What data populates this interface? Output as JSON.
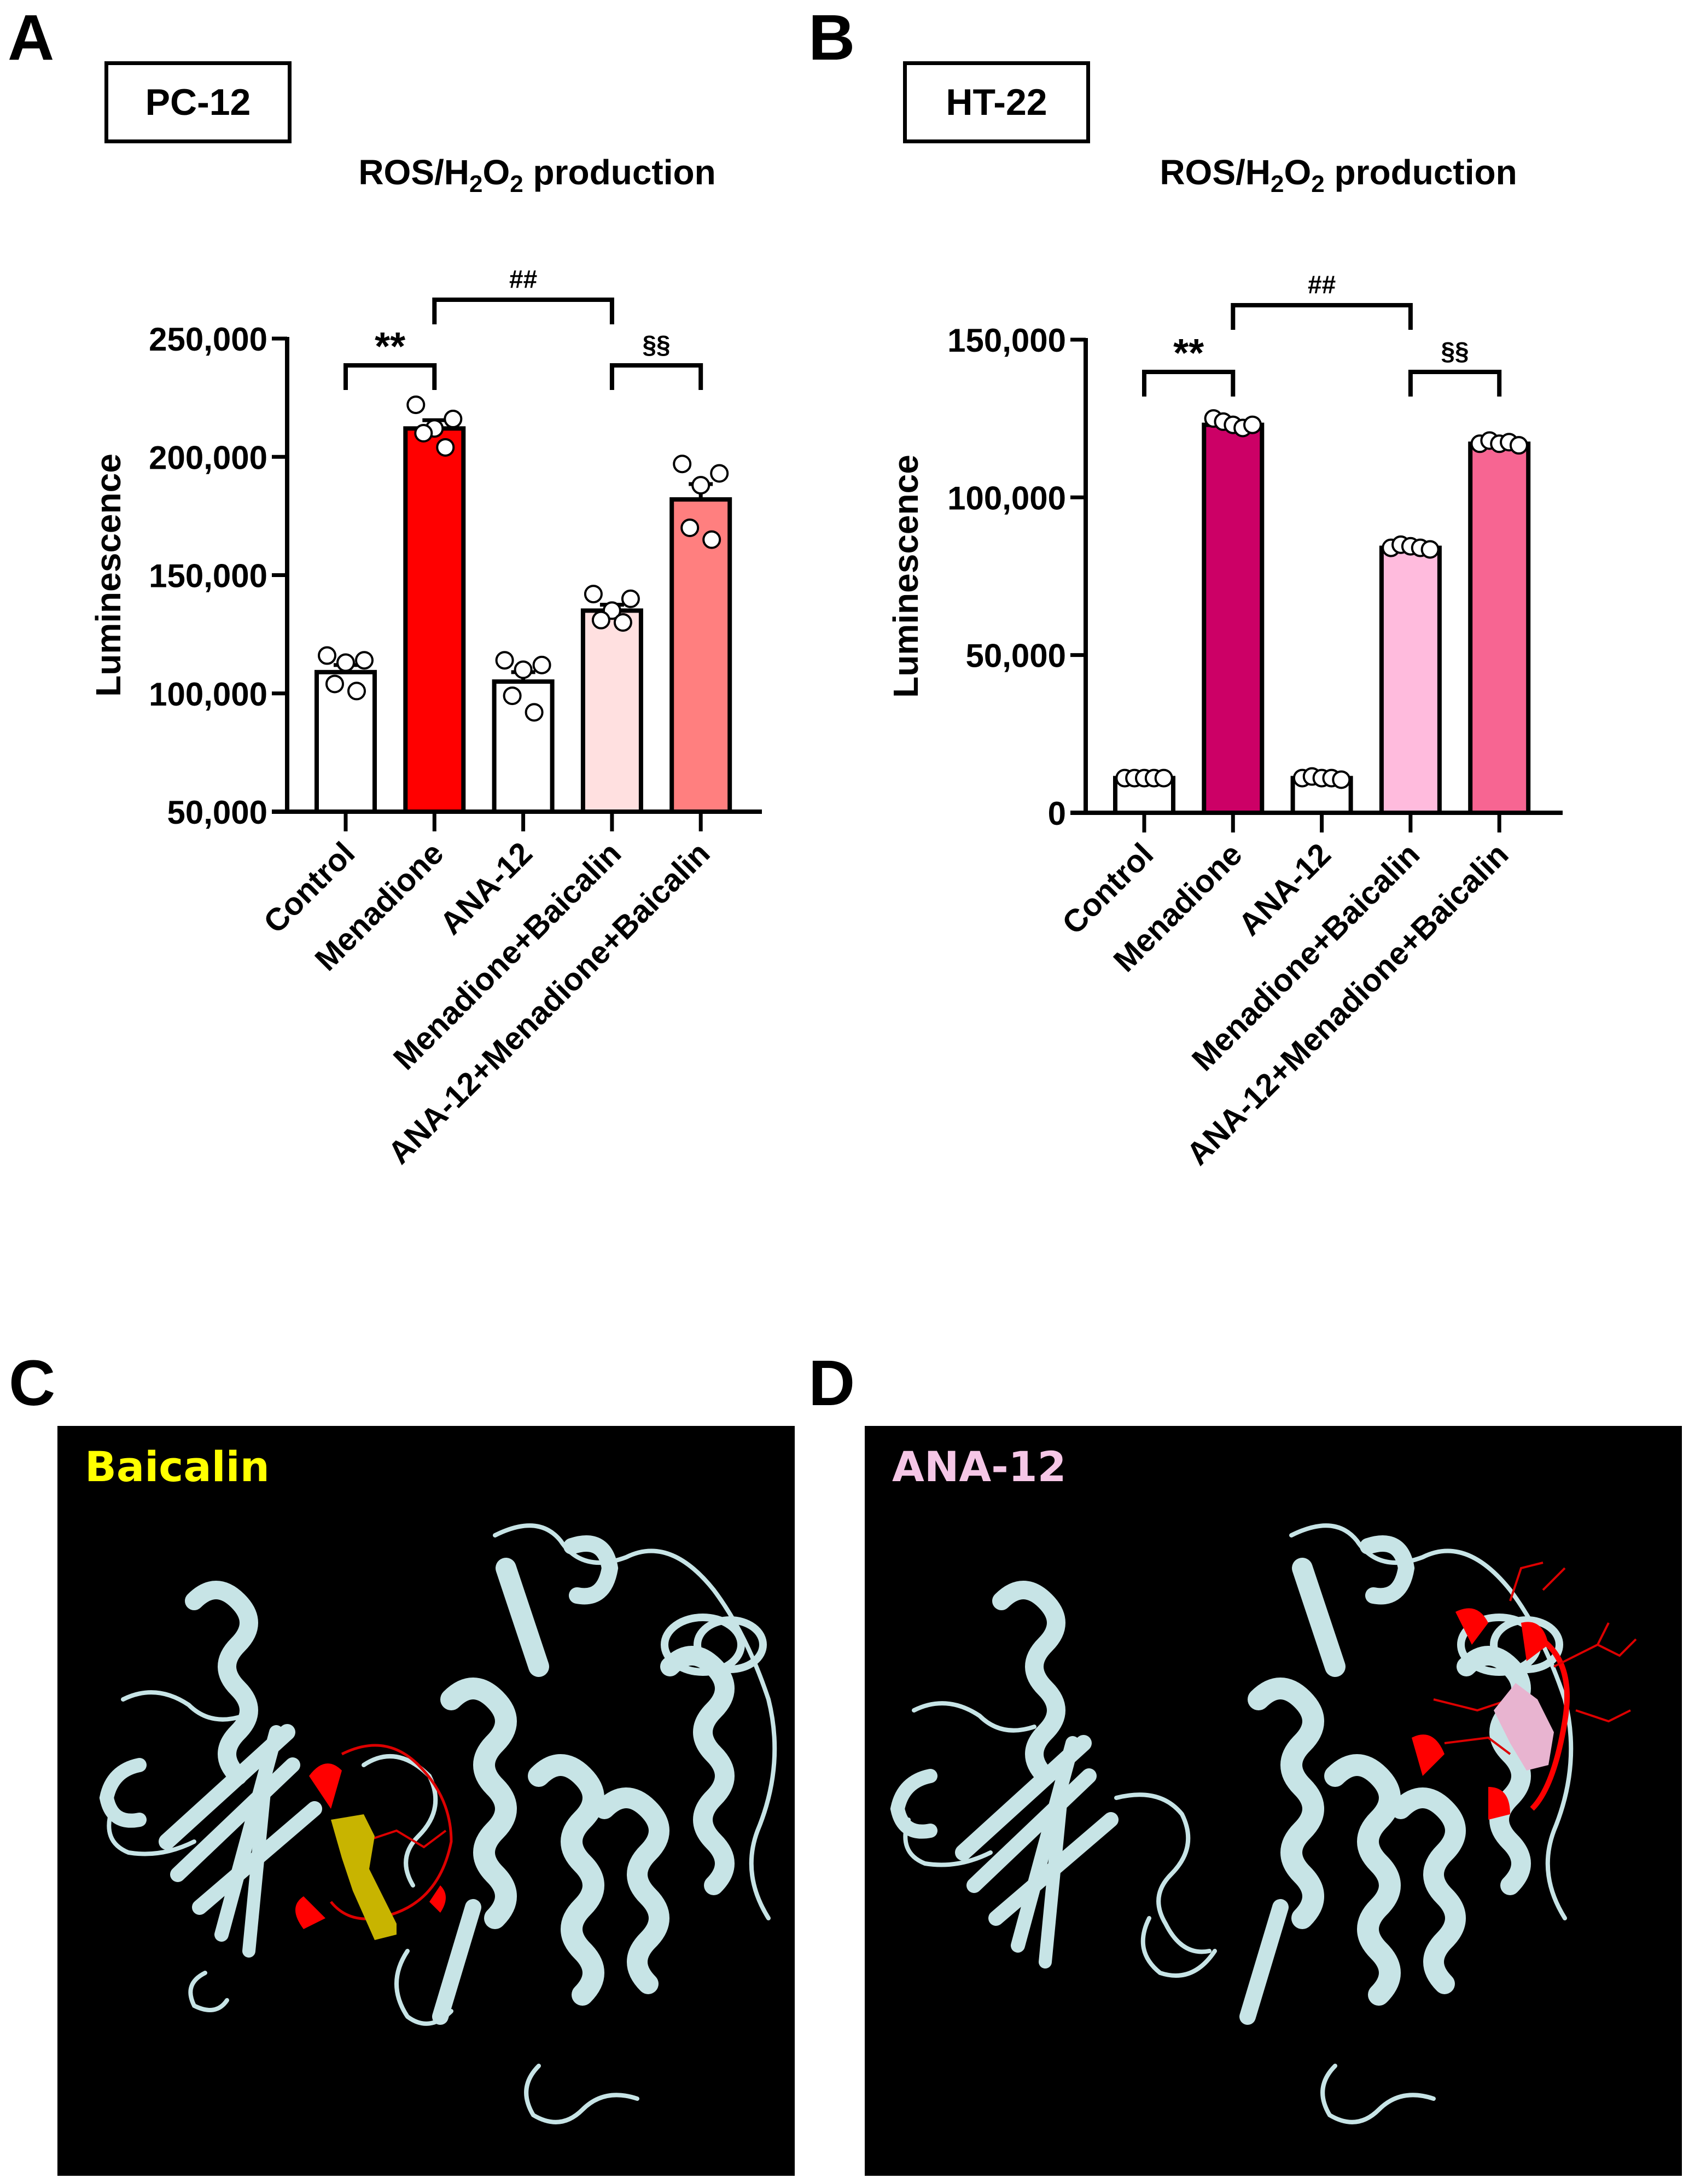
{
  "figure": {
    "panels": {
      "A": {
        "letter": "A",
        "cell_line": "PC-12",
        "title_main": "ROS/H",
        "title_sub1": "2",
        "title_mid": "O",
        "title_sub2": "2",
        "title_end": " production"
      },
      "B": {
        "letter": "B",
        "cell_line": "HT-22",
        "title_main": "ROS/H",
        "title_sub1": "2",
        "title_mid": "O",
        "title_sub2": "2",
        "title_end": " production"
      },
      "C": {
        "letter": "C",
        "ligand_label": "Baicalin",
        "ligand_color": "#FFFF00"
      },
      "D": {
        "letter": "D",
        "ligand_label": "ANA-12",
        "ligand_color": "#F5C6E6"
      }
    },
    "colors": {
      "protein_ribbon": "#C7E4E6",
      "binding_site": "#FF0000",
      "baicalin_ligand": "#C8B400",
      "ana12_ligand": "#E8B4D0"
    }
  },
  "chart_data": [
    {
      "panel": "A",
      "type": "bar",
      "title": "ROS/H2O2 production",
      "subtitle": "PC-12",
      "xlabel": "",
      "ylabel": "Luminescence",
      "ylim": [
        50000,
        250000
      ],
      "yticks": [
        50000,
        100000,
        150000,
        200000,
        250000
      ],
      "ytick_labels": [
        "50,000",
        "100,000",
        "150,000",
        "200,000",
        "250,000"
      ],
      "categories": [
        "Control",
        "Menadione",
        "ANA-12",
        "Menadione+Baicalin",
        "ANA-12+Menadione+Baicalin"
      ],
      "values": [
        109000,
        212000,
        105000,
        135000,
        182000
      ],
      "sem": [
        3000,
        3500,
        4000,
        2500,
        6500
      ],
      "points": [
        [
          116000,
          114000,
          113000,
          104000,
          101000
        ],
        [
          222000,
          216000,
          212000,
          210000,
          204000
        ],
        [
          114000,
          112000,
          110000,
          99000,
          92000
        ],
        [
          142000,
          140000,
          135000,
          131000,
          130000
        ],
        [
          197000,
          193000,
          188000,
          170000,
          165000
        ]
      ],
      "colors": [
        "#FFFFFF",
        "#FF0000",
        "#FFFFFF",
        "#FFE0E0",
        "#FF7F7F"
      ],
      "significance": [
        {
          "from": 0,
          "to": 1,
          "label": "**",
          "level": 1
        },
        {
          "from": 1,
          "to": 3,
          "label": "##",
          "level": 2
        },
        {
          "from": 3,
          "to": 4,
          "label": "§§",
          "level": 1
        }
      ],
      "grid": false,
      "legend": "none"
    },
    {
      "panel": "B",
      "type": "bar",
      "title": "ROS/H2O2 production",
      "subtitle": "HT-22",
      "xlabel": "",
      "ylabel": "Luminescence",
      "ylim": [
        0,
        150000
      ],
      "yticks": [
        0,
        50000,
        100000,
        150000
      ],
      "ytick_labels": [
        "0",
        "50,000",
        "100,000",
        "150,000"
      ],
      "categories": [
        "Control",
        "Menadione",
        "ANA-12",
        "Menadione+Baicalin",
        "ANA-12+Menadione+Baicalin"
      ],
      "values": [
        11000,
        123000,
        11000,
        84000,
        117000
      ],
      "sem": [
        200,
        800,
        200,
        500,
        600
      ],
      "points": [
        [
          11000,
          11000,
          11000,
          11000,
          11000
        ],
        [
          125000,
          124000,
          123000,
          122000,
          123000
        ],
        [
          11000,
          11500,
          11000,
          11000,
          10500
        ],
        [
          84000,
          85000,
          84500,
          84000,
          83500
        ],
        [
          117000,
          118000,
          117000,
          117500,
          116500
        ]
      ],
      "colors": [
        "#FFFFFF",
        "#CC0066",
        "#FFFFFF",
        "#FFBBDD",
        "#F76592"
      ],
      "significance": [
        {
          "from": 0,
          "to": 1,
          "label": "**",
          "level": 1
        },
        {
          "from": 1,
          "to": 3,
          "label": "##",
          "level": 2
        },
        {
          "from": 3,
          "to": 4,
          "label": "§§",
          "level": 1
        }
      ],
      "grid": false,
      "legend": "none"
    }
  ]
}
